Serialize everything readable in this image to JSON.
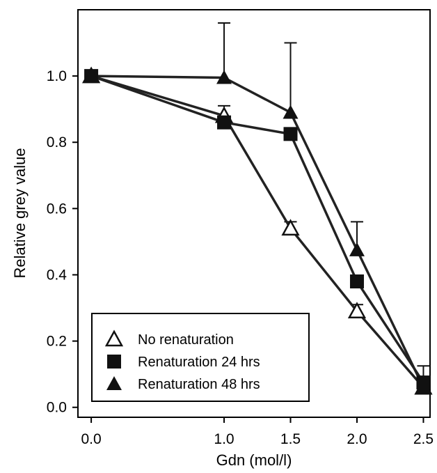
{
  "chart_data": {
    "type": "line",
    "title": "",
    "xlabel": "Gdn (mol/l)",
    "ylabel": "Relative grey value",
    "x": [
      0.0,
      1.0,
      1.5,
      2.0,
      2.5
    ],
    "xlim": [
      -0.1,
      2.55
    ],
    "ylim": [
      -0.03,
      1.2
    ],
    "x_ticks": [
      "0.0",
      "1.0",
      "1.5",
      "2.0",
      "2.5"
    ],
    "y_ticks": [
      "0.0",
      "0.2",
      "0.4",
      "0.6",
      "0.8",
      "1.0"
    ],
    "grid": false,
    "legend_position": "bottom-left",
    "series": [
      {
        "name": "No renaturation",
        "marker": "open-triangle",
        "values": [
          1.0,
          0.88,
          0.54,
          0.29,
          0.06
        ],
        "error": [
          0.0,
          0.03,
          0.02,
          0.02,
          0.02
        ]
      },
      {
        "name": "Renaturation 24 hrs",
        "marker": "filled-square",
        "values": [
          1.0,
          0.86,
          0.825,
          0.38,
          0.075
        ],
        "error": [
          0.0,
          0.0,
          0.0,
          0.0,
          0.05
        ]
      },
      {
        "name": "Renaturation 48 hrs",
        "marker": "filled-triangle",
        "values": [
          1.0,
          0.995,
          0.89,
          0.475,
          0.06
        ],
        "error": [
          0.0,
          0.165,
          0.21,
          0.085,
          0.0
        ]
      }
    ],
    "colors": {
      "line": "#222222",
      "marker": "#111111",
      "axis": "#000000"
    }
  }
}
